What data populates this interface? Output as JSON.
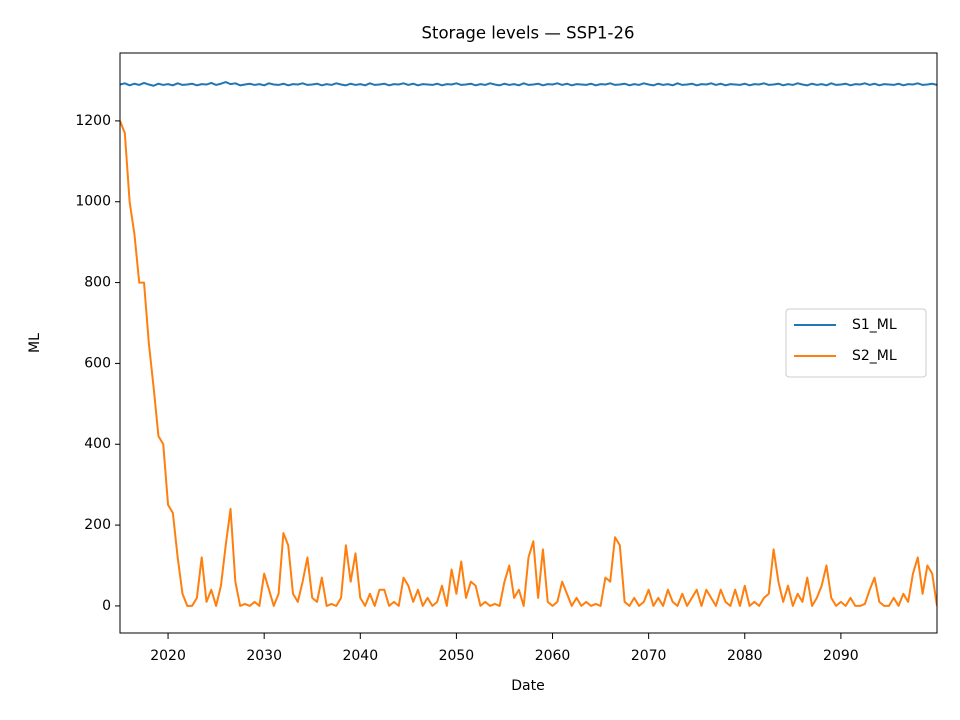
{
  "chart_data": {
    "type": "line",
    "title": "Storage levels — SSP1-26",
    "xlabel": "Date",
    "ylabel": "ML",
    "xlim": [
      2015,
      2100
    ],
    "xticks": [
      2020,
      2030,
      2040,
      2050,
      2060,
      2070,
      2080,
      2090
    ],
    "ylim": [
      -67,
      1368
    ],
    "yticks": [
      0,
      200,
      400,
      600,
      800,
      1000,
      1200
    ],
    "grid": false,
    "legend": "center right",
    "x": [
      2015,
      2015.5,
      2016,
      2016.5,
      2017,
      2017.5,
      2018,
      2018.5,
      2019,
      2019.5,
      2020,
      2020.5,
      2021,
      2021.5,
      2022,
      2022.5,
      2023,
      2023.5,
      2024,
      2024.5,
      2025,
      2025.5,
      2026,
      2026.5,
      2027,
      2027.5,
      2028,
      2028.5,
      2029,
      2029.5,
      2030,
      2030.5,
      2031,
      2031.5,
      2032,
      2032.5,
      2033,
      2033.5,
      2034,
      2034.5,
      2035,
      2035.5,
      2036,
      2036.5,
      2037,
      2037.5,
      2038,
      2038.5,
      2039,
      2039.5,
      2040,
      2040.5,
      2041,
      2041.5,
      2042,
      2042.5,
      2043,
      2043.5,
      2044,
      2044.5,
      2045,
      2045.5,
      2046,
      2046.5,
      2047,
      2047.5,
      2048,
      2048.5,
      2049,
      2049.5,
      2050,
      2050.5,
      2051,
      2051.5,
      2052,
      2052.5,
      2053,
      2053.5,
      2054,
      2054.5,
      2055,
      2055.5,
      2056,
      2056.5,
      2057,
      2057.5,
      2058,
      2058.5,
      2059,
      2059.5,
      2060,
      2060.5,
      2061,
      2061.5,
      2062,
      2062.5,
      2063,
      2063.5,
      2064,
      2064.5,
      2065,
      2065.5,
      2066,
      2066.5,
      2067,
      2067.5,
      2068,
      2068.5,
      2069,
      2069.5,
      2070,
      2070.5,
      2071,
      2071.5,
      2072,
      2072.5,
      2073,
      2073.5,
      2074,
      2074.5,
      2075,
      2075.5,
      2076,
      2076.5,
      2077,
      2077.5,
      2078,
      2078.5,
      2079,
      2079.5,
      2080,
      2080.5,
      2081,
      2081.5,
      2082,
      2082.5,
      2083,
      2083.5,
      2084,
      2084.5,
      2085,
      2085.5,
      2086,
      2086.5,
      2087,
      2087.5,
      2088,
      2088.5,
      2089,
      2089.5,
      2090,
      2090.5,
      2091,
      2091.5,
      2092,
      2092.5,
      2093,
      2093.5,
      2094,
      2094.5,
      2095,
      2095.5,
      2096,
      2096.5,
      2097,
      2097.5,
      2098,
      2098.5,
      2099,
      2099.5,
      2100
    ],
    "series": [
      {
        "name": "S1_ML",
        "color": "#1f77b4",
        "values": [
          1290,
          1293,
          1288,
          1292,
          1289,
          1294,
          1290,
          1287,
          1292,
          1289,
          1291,
          1288,
          1293,
          1289,
          1290,
          1292,
          1288,
          1291,
          1290,
          1294,
          1289,
          1292,
          1296,
          1291,
          1293,
          1288,
          1290,
          1292,
          1289,
          1291,
          1288,
          1293,
          1290,
          1289,
          1292,
          1288,
          1291,
          1290,
          1293,
          1289,
          1290,
          1292,
          1288,
          1291,
          1289,
          1293,
          1290,
          1288,
          1292,
          1289,
          1291,
          1288,
          1293,
          1289,
          1290,
          1292,
          1288,
          1291,
          1290,
          1293,
          1289,
          1292,
          1288,
          1291,
          1290,
          1289,
          1292,
          1288,
          1291,
          1290,
          1293,
          1289,
          1290,
          1292,
          1288,
          1291,
          1289,
          1293,
          1290,
          1288,
          1292,
          1289,
          1291,
          1288,
          1293,
          1289,
          1290,
          1292,
          1288,
          1291,
          1290,
          1293,
          1289,
          1292,
          1288,
          1291,
          1290,
          1289,
          1292,
          1288,
          1291,
          1290,
          1293,
          1289,
          1290,
          1292,
          1288,
          1291,
          1289,
          1293,
          1290,
          1288,
          1292,
          1289,
          1291,
          1288,
          1293,
          1289,
          1290,
          1292,
          1288,
          1291,
          1290,
          1293,
          1289,
          1292,
          1288,
          1291,
          1290,
          1289,
          1292,
          1288,
          1291,
          1290,
          1293,
          1289,
          1290,
          1292,
          1288,
          1291,
          1289,
          1293,
          1290,
          1288,
          1292,
          1289,
          1291,
          1288,
          1293,
          1289,
          1290,
          1292,
          1288,
          1291,
          1290,
          1293,
          1289,
          1292,
          1288,
          1291,
          1290,
          1289,
          1292,
          1288,
          1291,
          1290,
          1293,
          1289,
          1290,
          1292,
          1289
        ]
      },
      {
        "name": "S2_ML",
        "color": "#ff7f0e",
        "values": [
          1200,
          1170,
          1000,
          920,
          800,
          800,
          650,
          540,
          420,
          400,
          250,
          230,
          120,
          30,
          0,
          0,
          20,
          120,
          10,
          40,
          0,
          50,
          150,
          240,
          60,
          0,
          5,
          0,
          10,
          0,
          80,
          40,
          0,
          30,
          180,
          150,
          30,
          10,
          60,
          120,
          20,
          10,
          70,
          0,
          5,
          0,
          20,
          150,
          60,
          130,
          20,
          0,
          30,
          0,
          40,
          40,
          0,
          10,
          0,
          70,
          50,
          10,
          40,
          0,
          20,
          0,
          10,
          50,
          0,
          90,
          30,
          110,
          20,
          60,
          50,
          0,
          10,
          0,
          5,
          0,
          60,
          100,
          20,
          40,
          0,
          120,
          160,
          20,
          140,
          10,
          0,
          10,
          60,
          30,
          0,
          20,
          0,
          10,
          0,
          5,
          0,
          70,
          60,
          170,
          150,
          10,
          0,
          20,
          0,
          10,
          40,
          0,
          20,
          0,
          40,
          10,
          0,
          30,
          0,
          20,
          40,
          0,
          40,
          20,
          0,
          40,
          10,
          0,
          40,
          0,
          50,
          0,
          10,
          0,
          20,
          30,
          140,
          60,
          10,
          50,
          0,
          30,
          10,
          70,
          0,
          20,
          50,
          100,
          20,
          0,
          10,
          0,
          20,
          0,
          0,
          5,
          40,
          70,
          10,
          0,
          0,
          20,
          0,
          30,
          10,
          80,
          120,
          30,
          100,
          80,
          0
        ]
      }
    ]
  }
}
